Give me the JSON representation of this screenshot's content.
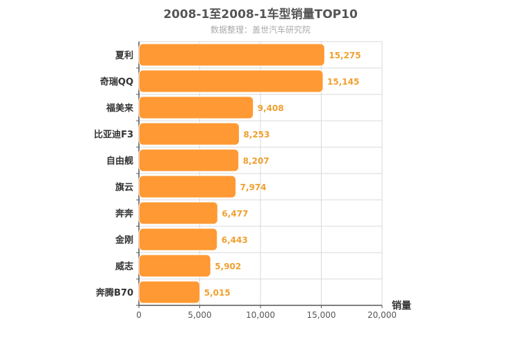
{
  "chart_data": {
    "type": "bar",
    "orientation": "horizontal",
    "title": "2008-1至2008-1车型销量TOP10",
    "subtitle": "数据整理：盖世汽车研究院",
    "xlabel": "销量",
    "ylabel": "",
    "categories": [
      "夏利",
      "奇瑞QQ",
      "福美来",
      "比亚迪F3",
      "自由舰",
      "旗云",
      "奔奔",
      "金刚",
      "威志",
      "奔腾B70"
    ],
    "values": [
      15275,
      15145,
      9408,
      8253,
      8207,
      7974,
      6477,
      6443,
      5902,
      5015
    ],
    "value_labels": [
      "15,275",
      "15,145",
      "9,408",
      "8,253",
      "8,207",
      "7,974",
      "6,477",
      "6,443",
      "5,902",
      "5,015"
    ],
    "xlim": [
      0,
      20000
    ],
    "x_ticks": [
      0,
      5000,
      10000,
      15000,
      20000
    ],
    "x_tick_labels": [
      "0",
      "5,000",
      "10,000",
      "15,000",
      "20,000"
    ],
    "grid": true,
    "colors": {
      "bar": "#ff9933",
      "bar_border": "#ffffff",
      "value_label": "#f0a030",
      "grid": "#d8d8d8",
      "axis": "#555555",
      "category_label": "#333333",
      "tick_label": "#555555"
    }
  }
}
